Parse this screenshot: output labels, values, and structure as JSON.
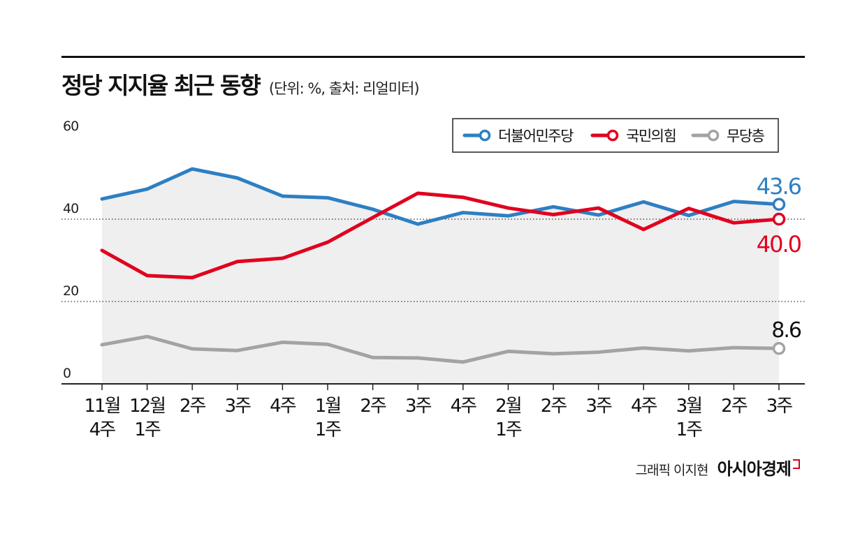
{
  "header": {
    "title": "정당 지지율 최근 동향",
    "subtitle": "(단위: %, 출처: 리얼미터)"
  },
  "footer": {
    "credit": "그래픽 이지현",
    "logo": "아시아경제"
  },
  "colors": {
    "democratic": "#2e7fc2",
    "ppp": "#e1001e",
    "independent": "#a3a3a3",
    "area": "#efefef",
    "axis": "#222222"
  },
  "chart_data": {
    "type": "line",
    "x_lines": [
      [
        "11월",
        "4주"
      ],
      [
        "12월",
        "1주"
      ],
      [
        "2주"
      ],
      [
        "3주"
      ],
      [
        "4주"
      ],
      [
        "1월",
        "1주"
      ],
      [
        "2주"
      ],
      [
        "3주"
      ],
      [
        "4주"
      ],
      [
        "2월",
        "1주"
      ],
      [
        "2주"
      ],
      [
        "3주"
      ],
      [
        "4주"
      ],
      [
        "3월",
        "1주"
      ],
      [
        "2주"
      ],
      [
        "3주"
      ]
    ],
    "yticks": [
      "60",
      "40",
      "20",
      "0"
    ],
    "ylim": [
      0,
      60
    ],
    "grid": "dotted at 20 and 40",
    "legend_position": "top-right",
    "series": [
      {
        "name": "더불어민주당",
        "values": [
          44.9,
          47.3,
          52.2,
          50.0,
          45.6,
          45.2,
          42.4,
          38.8,
          41.6,
          40.8,
          43.0,
          41.0,
          44.2,
          40.9,
          44.3,
          43.6
        ],
        "end_label": "43.6"
      },
      {
        "name": "국민의힘",
        "values": [
          32.4,
          26.3,
          25.8,
          29.7,
          30.5,
          34.4,
          40.4,
          46.3,
          45.3,
          42.7,
          41.1,
          42.7,
          37.5,
          42.6,
          39.1,
          40.0
        ],
        "end_label": "40.0"
      },
      {
        "name": "무당층",
        "values": [
          9.5,
          11.5,
          8.5,
          8.1,
          10.1,
          9.6,
          6.4,
          6.3,
          5.3,
          7.9,
          7.3,
          7.7,
          8.7,
          8.0,
          8.8,
          8.6
        ],
        "end_label": "8.6"
      }
    ]
  }
}
